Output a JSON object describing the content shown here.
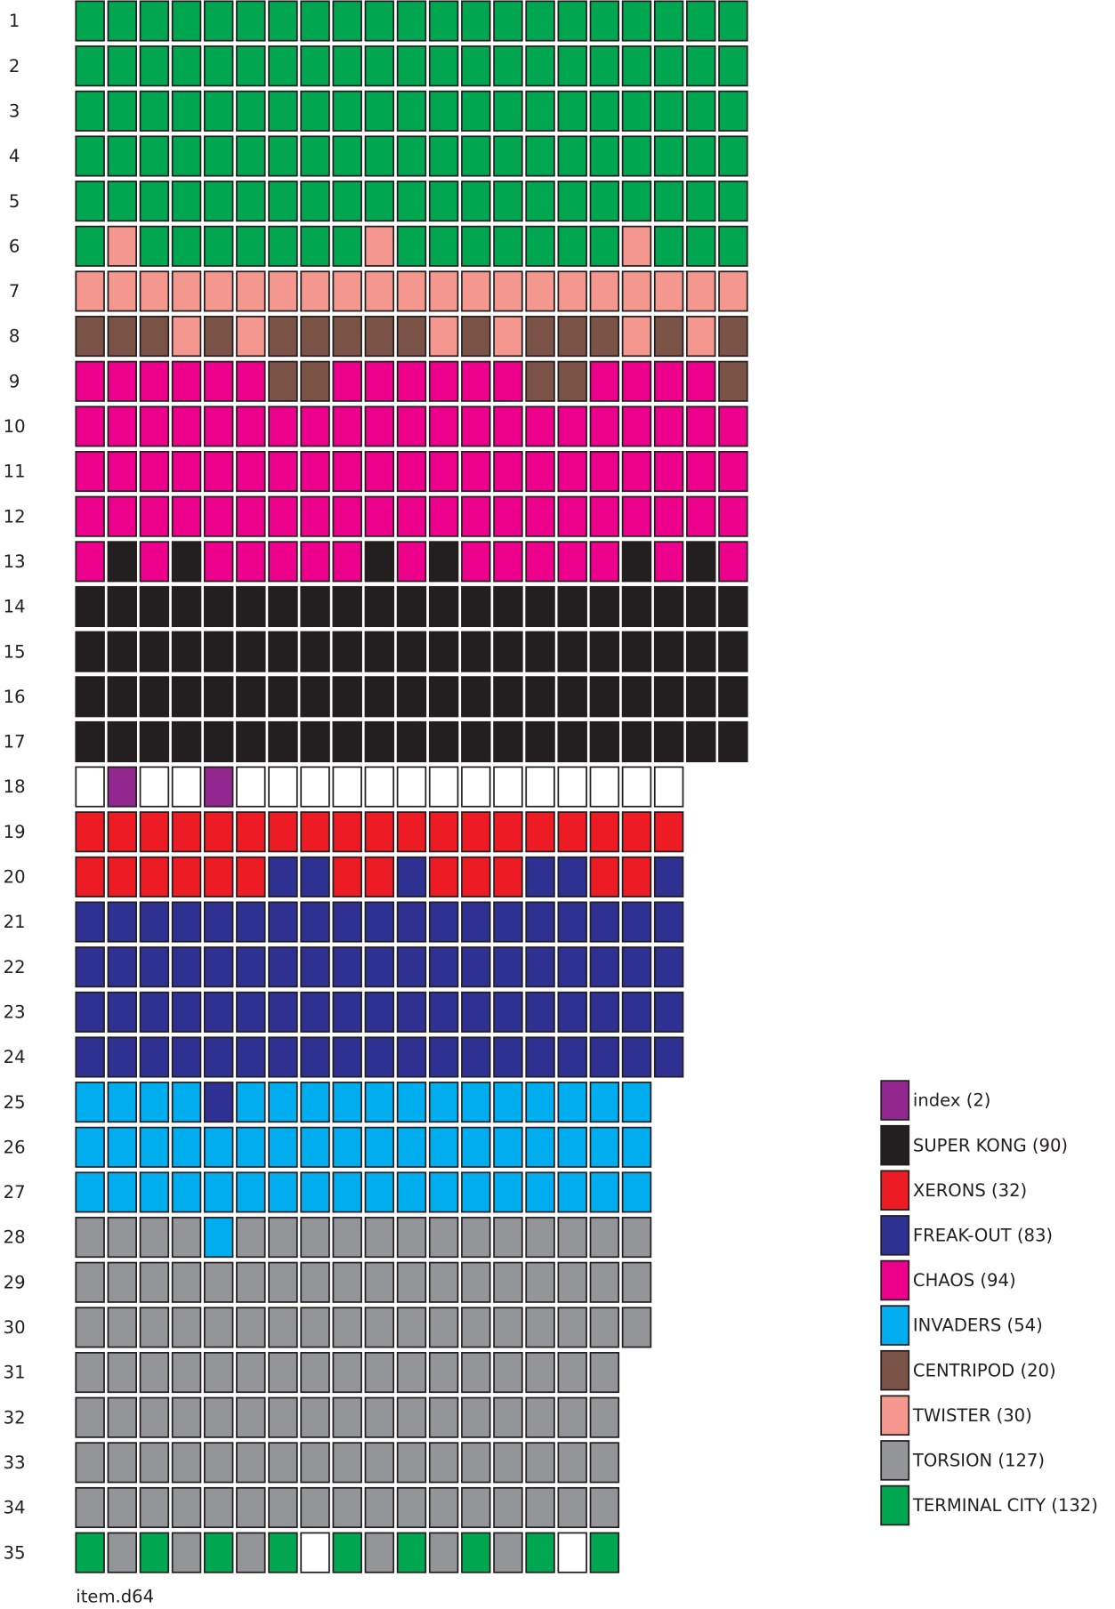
{
  "legend": [
    {
      "label": "index (2)",
      "color": "#92278f"
    },
    {
      "label": "SUPER KONG (90)",
      "color": "#231f20"
    },
    {
      "label": "XERONS (32)",
      "color": "#ed1c24"
    },
    {
      "label": "FREAK-OUT (83)",
      "color": "#2e3192"
    },
    {
      "label": "CHAOS (94)",
      "color": "#ec008c"
    },
    {
      "label": "INVADERS (54)",
      "color": "#00aeef"
    },
    {
      "label": "CENTRIPOD (20)",
      "color": "#7b5346"
    },
    {
      "label": "TWISTER (30)",
      "color": "#f4978e"
    },
    {
      "label": "TORSION (127)",
      "color": "#939598"
    },
    {
      "label": "TERMINAL CITY (132)",
      "color": "#00a650"
    }
  ],
  "free_color": "#ffffff",
  "tracks": [
    {
      "label": "1",
      "sectors": [
        9,
        9,
        9,
        9,
        9,
        9,
        9,
        9,
        9,
        9,
        9,
        9,
        9,
        9,
        9,
        9,
        9,
        9,
        9,
        9,
        9
      ]
    },
    {
      "label": "2",
      "sectors": [
        9,
        9,
        9,
        9,
        9,
        9,
        9,
        9,
        9,
        9,
        9,
        9,
        9,
        9,
        9,
        9,
        9,
        9,
        9,
        9,
        9
      ]
    },
    {
      "label": "3",
      "sectors": [
        9,
        9,
        9,
        9,
        9,
        9,
        9,
        9,
        9,
        9,
        9,
        9,
        9,
        9,
        9,
        9,
        9,
        9,
        9,
        9,
        9
      ]
    },
    {
      "label": "4",
      "sectors": [
        9,
        9,
        9,
        9,
        9,
        9,
        9,
        9,
        9,
        9,
        9,
        9,
        9,
        9,
        9,
        9,
        9,
        9,
        9,
        9,
        9
      ]
    },
    {
      "label": "5",
      "sectors": [
        9,
        9,
        9,
        9,
        9,
        9,
        9,
        9,
        9,
        9,
        9,
        9,
        9,
        9,
        9,
        9,
        9,
        9,
        9,
        9,
        9
      ]
    },
    {
      "label": "6",
      "sectors": [
        9,
        7,
        9,
        9,
        9,
        9,
        9,
        9,
        9,
        7,
        9,
        9,
        9,
        9,
        9,
        9,
        9,
        7,
        9,
        9,
        9
      ]
    },
    {
      "label": "7",
      "sectors": [
        7,
        7,
        7,
        7,
        7,
        7,
        7,
        7,
        7,
        7,
        7,
        7,
        7,
        7,
        7,
        7,
        7,
        7,
        7,
        7,
        7
      ]
    },
    {
      "label": "8",
      "sectors": [
        6,
        6,
        6,
        7,
        6,
        7,
        6,
        6,
        6,
        6,
        6,
        7,
        6,
        7,
        6,
        6,
        6,
        7,
        6,
        7,
        6
      ]
    },
    {
      "label": "9",
      "sectors": [
        4,
        4,
        4,
        4,
        4,
        4,
        6,
        6,
        4,
        4,
        4,
        4,
        4,
        4,
        6,
        6,
        4,
        4,
        4,
        4,
        6
      ]
    },
    {
      "label": "10",
      "sectors": [
        4,
        4,
        4,
        4,
        4,
        4,
        4,
        4,
        4,
        4,
        4,
        4,
        4,
        4,
        4,
        4,
        4,
        4,
        4,
        4,
        4
      ]
    },
    {
      "label": "11",
      "sectors": [
        4,
        4,
        4,
        4,
        4,
        4,
        4,
        4,
        4,
        4,
        4,
        4,
        4,
        4,
        4,
        4,
        4,
        4,
        4,
        4,
        4
      ]
    },
    {
      "label": "12",
      "sectors": [
        4,
        4,
        4,
        4,
        4,
        4,
        4,
        4,
        4,
        4,
        4,
        4,
        4,
        4,
        4,
        4,
        4,
        4,
        4,
        4,
        4
      ]
    },
    {
      "label": "13",
      "sectors": [
        4,
        1,
        4,
        1,
        4,
        4,
        4,
        4,
        4,
        1,
        4,
        1,
        4,
        4,
        4,
        4,
        4,
        1,
        4,
        1,
        4
      ]
    },
    {
      "label": "14",
      "sectors": [
        1,
        1,
        1,
        1,
        1,
        1,
        1,
        1,
        1,
        1,
        1,
        1,
        1,
        1,
        1,
        1,
        1,
        1,
        1,
        1,
        1
      ]
    },
    {
      "label": "15",
      "sectors": [
        1,
        1,
        1,
        1,
        1,
        1,
        1,
        1,
        1,
        1,
        1,
        1,
        1,
        1,
        1,
        1,
        1,
        1,
        1,
        1,
        1
      ]
    },
    {
      "label": "16",
      "sectors": [
        1,
        1,
        1,
        1,
        1,
        1,
        1,
        1,
        1,
        1,
        1,
        1,
        1,
        1,
        1,
        1,
        1,
        1,
        1,
        1,
        1
      ]
    },
    {
      "label": "17",
      "sectors": [
        1,
        1,
        1,
        1,
        1,
        1,
        1,
        1,
        1,
        1,
        1,
        1,
        1,
        1,
        1,
        1,
        1,
        1,
        1,
        1,
        1
      ]
    },
    {
      "label": "18",
      "sectors": [
        null,
        0,
        null,
        null,
        0,
        null,
        null,
        null,
        null,
        null,
        null,
        null,
        null,
        null,
        null,
        null,
        null,
        null,
        null
      ]
    },
    {
      "label": "19",
      "sectors": [
        2,
        2,
        2,
        2,
        2,
        2,
        2,
        2,
        2,
        2,
        2,
        2,
        2,
        2,
        2,
        2,
        2,
        2,
        2
      ]
    },
    {
      "label": "20",
      "sectors": [
        2,
        2,
        2,
        2,
        2,
        2,
        3,
        3,
        2,
        2,
        3,
        2,
        2,
        2,
        3,
        3,
        2,
        2,
        3
      ]
    },
    {
      "label": "21",
      "sectors": [
        3,
        3,
        3,
        3,
        3,
        3,
        3,
        3,
        3,
        3,
        3,
        3,
        3,
        3,
        3,
        3,
        3,
        3,
        3
      ]
    },
    {
      "label": "22",
      "sectors": [
        3,
        3,
        3,
        3,
        3,
        3,
        3,
        3,
        3,
        3,
        3,
        3,
        3,
        3,
        3,
        3,
        3,
        3,
        3
      ]
    },
    {
      "label": "23",
      "sectors": [
        3,
        3,
        3,
        3,
        3,
        3,
        3,
        3,
        3,
        3,
        3,
        3,
        3,
        3,
        3,
        3,
        3,
        3,
        3
      ]
    },
    {
      "label": "24",
      "sectors": [
        3,
        3,
        3,
        3,
        3,
        3,
        3,
        3,
        3,
        3,
        3,
        3,
        3,
        3,
        3,
        3,
        3,
        3,
        3
      ]
    },
    {
      "label": "25",
      "sectors": [
        5,
        5,
        5,
        5,
        3,
        5,
        5,
        5,
        5,
        5,
        5,
        5,
        5,
        5,
        5,
        5,
        5,
        5
      ]
    },
    {
      "label": "26",
      "sectors": [
        5,
        5,
        5,
        5,
        5,
        5,
        5,
        5,
        5,
        5,
        5,
        5,
        5,
        5,
        5,
        5,
        5,
        5
      ]
    },
    {
      "label": "27",
      "sectors": [
        5,
        5,
        5,
        5,
        5,
        5,
        5,
        5,
        5,
        5,
        5,
        5,
        5,
        5,
        5,
        5,
        5,
        5
      ]
    },
    {
      "label": "28",
      "sectors": [
        8,
        8,
        8,
        8,
        5,
        8,
        8,
        8,
        8,
        8,
        8,
        8,
        8,
        8,
        8,
        8,
        8,
        8
      ]
    },
    {
      "label": "29",
      "sectors": [
        8,
        8,
        8,
        8,
        8,
        8,
        8,
        8,
        8,
        8,
        8,
        8,
        8,
        8,
        8,
        8,
        8,
        8
      ]
    },
    {
      "label": "30",
      "sectors": [
        8,
        8,
        8,
        8,
        8,
        8,
        8,
        8,
        8,
        8,
        8,
        8,
        8,
        8,
        8,
        8,
        8,
        8
      ]
    },
    {
      "label": "31",
      "sectors": [
        8,
        8,
        8,
        8,
        8,
        8,
        8,
        8,
        8,
        8,
        8,
        8,
        8,
        8,
        8,
        8,
        8
      ]
    },
    {
      "label": "32",
      "sectors": [
        8,
        8,
        8,
        8,
        8,
        8,
        8,
        8,
        8,
        8,
        8,
        8,
        8,
        8,
        8,
        8,
        8
      ]
    },
    {
      "label": "33",
      "sectors": [
        8,
        8,
        8,
        8,
        8,
        8,
        8,
        8,
        8,
        8,
        8,
        8,
        8,
        8,
        8,
        8,
        8
      ]
    },
    {
      "label": "34",
      "sectors": [
        8,
        8,
        8,
        8,
        8,
        8,
        8,
        8,
        8,
        8,
        8,
        8,
        8,
        8,
        8,
        8,
        8
      ]
    },
    {
      "label": "35",
      "sectors": [
        9,
        8,
        9,
        8,
        9,
        8,
        9,
        null,
        9,
        8,
        9,
        8,
        9,
        8,
        9,
        null,
        9
      ]
    }
  ],
  "footer": "item.d64"
}
